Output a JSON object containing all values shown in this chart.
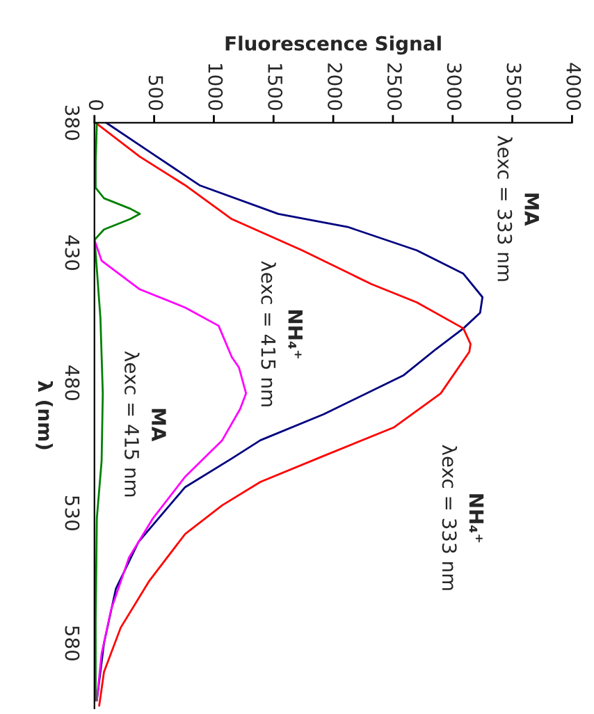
{
  "chart_data": {
    "type": "line",
    "orientation": "horizontal",
    "xlabel": "Fluorescence Signal",
    "ylabel": "λ (nm)",
    "ylim": [
      605,
      380
    ],
    "yticks": [
      380,
      430,
      480,
      530,
      580
    ],
    "xlim": [
      0,
      4000
    ],
    "xticks": [
      0,
      500,
      1000,
      1500,
      2000,
      2500,
      3000,
      3500,
      4000
    ],
    "grid": false,
    "legend": false,
    "marker": "none",
    "line_style": "solid",
    "series": [
      {
        "color": "#000080",
        "x": [
          380,
          392,
          404,
          415,
          420,
          429,
          438,
          447,
          453,
          459,
          467,
          477,
          492,
          502,
          509,
          520,
          541,
          559,
          580,
          602
        ],
        "values": [
          100,
          490,
          880,
          1540,
          2120,
          2700,
          3090,
          3250,
          3230,
          3090,
          2860,
          2590,
          1920,
          1390,
          1150,
          760,
          370,
          180,
          80,
          20
        ]
      },
      {
        "color": "#ff0000",
        "x": [
          380,
          393,
          404,
          417,
          429,
          442,
          449,
          459,
          465,
          468,
          484,
          497,
          508,
          518,
          527,
          538,
          556,
          574,
          591,
          604
        ],
        "values": [
          10,
          380,
          760,
          1150,
          1740,
          2320,
          2700,
          3090,
          3150,
          3140,
          2900,
          2510,
          1920,
          1390,
          1070,
          760,
          460,
          220,
          80,
          40
        ]
      },
      {
        "color": "#ff00ff",
        "x": [
          425,
          433,
          444,
          451,
          458,
          470,
          474,
          484,
          490,
          502,
          516,
          532,
          547,
          567,
          584,
          602
        ],
        "values": [
          0,
          60,
          380,
          760,
          1040,
          1150,
          1210,
          1270,
          1220,
          1070,
          760,
          490,
          290,
          140,
          60,
          20
        ]
      },
      {
        "color": "#008000",
        "x": [
          380,
          395,
          405,
          409,
          413,
          415,
          417,
          421,
          425,
          430,
          455,
          484,
          510,
          532,
          571,
          602
        ],
        "values": [
          20,
          10,
          10,
          80,
          300,
          380,
          300,
          80,
          0,
          10,
          50,
          70,
          60,
          20,
          10,
          10
        ]
      }
    ],
    "annotations": [
      "MA\nλexc = 333 nm",
      "NH₄⁺\nλexc = 333 nm",
      "NH₄⁺\nλexc = 415 nm",
      "MA\nλexc = 415 nm"
    ]
  }
}
